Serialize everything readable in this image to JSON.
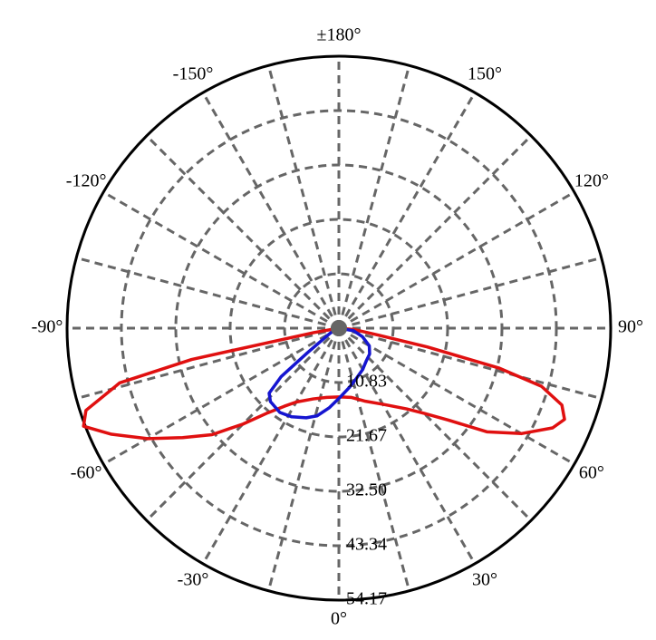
{
  "chart_data": {
    "type": "polar",
    "rlim": [
      0,
      54.17
    ],
    "rticks": [
      10.83,
      21.67,
      {
        "value": 32.5,
        "label": "32.50"
      },
      43.34,
      54.17
    ],
    "thetaticks": [
      {
        "value": 0,
        "label": "0°"
      },
      {
        "value": 30,
        "label": "30°"
      },
      {
        "value": 60,
        "label": "60°"
      },
      {
        "value": 90,
        "label": "90°"
      },
      {
        "value": 120,
        "label": "120°"
      },
      {
        "value": 150,
        "label": "150°"
      },
      {
        "value": 180,
        "label": "±180°"
      },
      {
        "value": -150,
        "label": "-150°"
      },
      {
        "value": -120,
        "label": "-120°"
      },
      {
        "value": -90,
        "label": "-90°"
      },
      {
        "value": -60,
        "label": "-60°"
      },
      {
        "value": -30,
        "label": "-30°"
      }
    ],
    "thetagrid": [
      0,
      15,
      30,
      45,
      60,
      75,
      90,
      105,
      120,
      135,
      150,
      165,
      180,
      195,
      210,
      225,
      240,
      255,
      270,
      285,
      300,
      315,
      330,
      345
    ],
    "grid": true,
    "series": [
      {
        "color": "#e01010",
        "theta": [
          -90,
          -80,
          -78,
          -76,
          -72,
          -69,
          -65,
          -60,
          -55,
          -50,
          -45,
          -40,
          -35,
          -30,
          -20,
          -10,
          0,
          10,
          20,
          30,
          40,
          45,
          50,
          55,
          60,
          65,
          68,
          71,
          74,
          76,
          78,
          80,
          85,
          90
        ],
        "values": [
          0,
          5,
          30,
          45,
          53,
          54.5,
          50,
          44,
          38,
          33,
          27,
          22,
          19,
          17,
          15,
          14,
          13.7,
          14,
          15.5,
          17.5,
          21,
          24,
          28.5,
          36,
          42,
          47,
          48.5,
          47,
          42,
          33,
          18,
          8,
          3,
          0
        ]
      },
      {
        "color": "#1515d0",
        "theta": [
          -90,
          -60,
          -52,
          -50,
          -47,
          -43,
          -35,
          -28,
          -20,
          -14,
          -7,
          0,
          10,
          20,
          30,
          40,
          50,
          60,
          70,
          80,
          90
        ],
        "values": [
          0,
          2,
          8,
          15,
          19,
          20,
          20.5,
          20,
          19,
          18,
          16,
          14,
          12,
          10.5,
          9.5,
          8.5,
          8,
          7,
          5,
          3,
          0
        ]
      }
    ]
  }
}
